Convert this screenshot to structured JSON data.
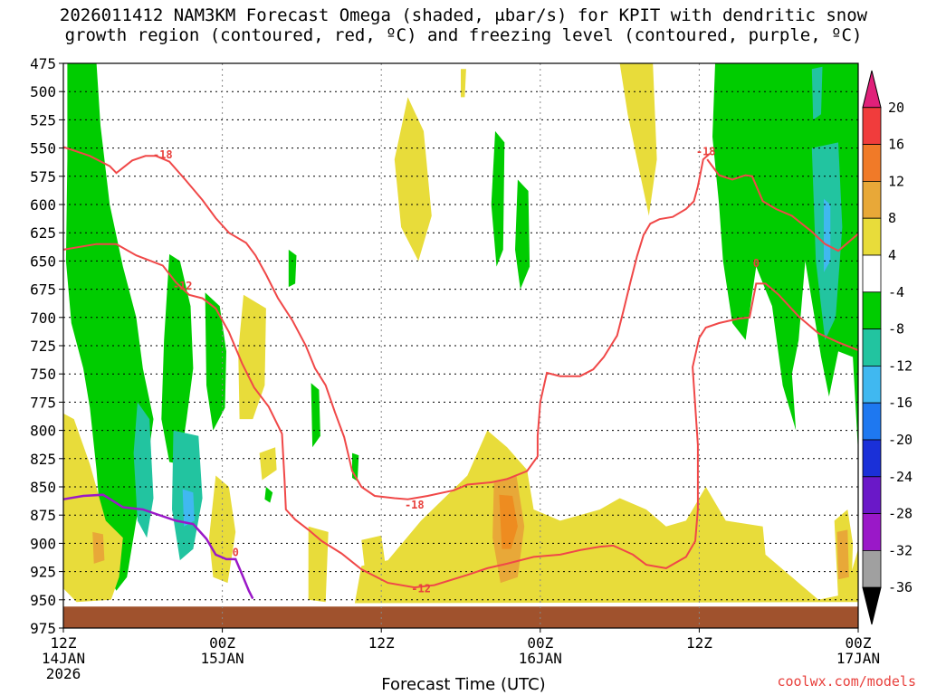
{
  "title_line1": "2026011412 NAM3KM Forecast Omega (shaded, μbar/s) for KPIT with dendritic snow",
  "title_line2": "growth region (contoured, red, ºC) and freezing level (contoured, purple, ºC)",
  "xaxis_title": "Forecast Time (UTC)",
  "credit": "coolwx.com/models",
  "colors": {
    "green": "#00cc00",
    "teal": "#22c4a0",
    "lightblue": "#40b8f0",
    "yellow": "#e8dc3a",
    "orange_light": "#e8a838",
    "orange": "#ee8c20",
    "terrain": "#a0522d",
    "contour_red": "#f04848",
    "contour_purple": "#9a18c8"
  },
  "chart_data": {
    "type": "heatmap",
    "title": "2026011412 NAM3KM Forecast Omega (shaded, μbar/s) for KPIT with dendritic snow growth region (contoured, red, ºC) and freezing level (contoured, purple, ºC)",
    "xlabel": "Forecast Time (UTC)",
    "ylabel": "",
    "y_axis": {
      "scale": "pressure",
      "range": [
        475,
        975
      ],
      "ticks": [
        475,
        500,
        525,
        550,
        575,
        600,
        625,
        650,
        675,
        700,
        725,
        750,
        775,
        800,
        825,
        850,
        875,
        900,
        925,
        950,
        975
      ]
    },
    "x_axis": {
      "range_hours": [
        0,
        60
      ],
      "ticks": [
        {
          "hour": 0,
          "label": "12Z",
          "sub": "14JAN",
          "sub2": "2026"
        },
        {
          "hour": 12,
          "label": "00Z",
          "sub": "15JAN",
          "sub2": ""
        },
        {
          "hour": 24,
          "label": "12Z",
          "sub": "",
          "sub2": ""
        },
        {
          "hour": 36,
          "label": "00Z",
          "sub": "16JAN",
          "sub2": ""
        },
        {
          "hour": 48,
          "label": "12Z",
          "sub": "",
          "sub2": ""
        },
        {
          "hour": 60,
          "label": "00Z",
          "sub": "17JAN",
          "sub2": ""
        }
      ]
    },
    "colorbar": {
      "labels": [
        20,
        16,
        12,
        8,
        4,
        -4,
        -8,
        -12,
        -16,
        -20,
        -24,
        -28,
        -32,
        -36
      ],
      "bands": [
        {
          "from": 20,
          "to": 24,
          "color": "#e0207a",
          "shape": "tri-up"
        },
        {
          "from": 16,
          "to": 20,
          "color": "#f03c3c"
        },
        {
          "from": 12,
          "to": 16,
          "color": "#f07a28"
        },
        {
          "from": 8,
          "to": 12,
          "color": "#e8a838"
        },
        {
          "from": 4,
          "to": 8,
          "color": "#e8dc3a"
        },
        {
          "from": -4,
          "to": 4,
          "color": "#ffffff"
        },
        {
          "from": -8,
          "to": -4,
          "color": "#00cc00"
        },
        {
          "from": -12,
          "to": -8,
          "color": "#22c4a0"
        },
        {
          "from": -16,
          "to": -12,
          "color": "#40b8f0"
        },
        {
          "from": -20,
          "to": -16,
          "color": "#1e78f0"
        },
        {
          "from": -24,
          "to": -20,
          "color": "#1a30d8"
        },
        {
          "from": -28,
          "to": -24,
          "color": "#6a18c8"
        },
        {
          "from": -32,
          "to": -28,
          "color": "#9a18c8"
        },
        {
          "from": -36,
          "to": -32,
          "color": "#a0a0a0"
        },
        {
          "from": -40,
          "to": -36,
          "color": "#000000",
          "shape": "tri-down"
        }
      ]
    },
    "contour_labels": [
      {
        "text": "-18",
        "hour": 7.5,
        "p": 556
      },
      {
        "text": "-12",
        "hour": 9,
        "p": 672
      },
      {
        "text": "-18",
        "hour": 26.5,
        "p": 866
      },
      {
        "text": "-12",
        "hour": 27,
        "p": 940
      },
      {
        "text": "-18",
        "hour": 48.5,
        "p": 553
      },
      {
        "text": "0",
        "hour": 52.3,
        "p": 652
      },
      {
        "text": "0",
        "hour": 13,
        "p": 908
      }
    ],
    "contour_minus18": [
      [
        0,
        549
      ],
      [
        2,
        557
      ],
      [
        3.5,
        566
      ],
      [
        4,
        572
      ],
      [
        5.2,
        561
      ],
      [
        6.2,
        557
      ],
      [
        7,
        557
      ],
      [
        8,
        562
      ],
      [
        9.2,
        578
      ],
      [
        10.5,
        596
      ],
      [
        11.5,
        612
      ],
      [
        12.5,
        625
      ],
      [
        13.8,
        634
      ],
      [
        14.5,
        645
      ],
      [
        15.3,
        662
      ],
      [
        16.2,
        683
      ],
      [
        17.3,
        703
      ],
      [
        18.3,
        725
      ],
      [
        19,
        745
      ],
      [
        19.8,
        760
      ],
      [
        20.5,
        784
      ],
      [
        21.2,
        806
      ],
      [
        21.8,
        836
      ],
      [
        22.5,
        850
      ],
      [
        23.5,
        858
      ],
      [
        25,
        860
      ],
      [
        26,
        861
      ],
      [
        27.5,
        858
      ],
      [
        29.5,
        853
      ],
      [
        30.5,
        848
      ],
      [
        32.3,
        846
      ],
      [
        33.5,
        843
      ],
      [
        35,
        836
      ],
      [
        35.8,
        823
      ],
      [
        35.8,
        805
      ],
      [
        36,
        775
      ],
      [
        36.5,
        749
      ],
      [
        37.5,
        752
      ],
      [
        39,
        752
      ],
      [
        40,
        746
      ],
      [
        40.8,
        735
      ],
      [
        41.8,
        716
      ],
      [
        42.3,
        693
      ],
      [
        42.8,
        669
      ],
      [
        43.3,
        646
      ],
      [
        43.8,
        627
      ],
      [
        44.3,
        617
      ],
      [
        45,
        613
      ],
      [
        46,
        611
      ],
      [
        47,
        604
      ],
      [
        47.6,
        597
      ],
      [
        47.9,
        584
      ],
      [
        48.3,
        560
      ],
      [
        48.8,
        555
      ]
    ],
    "contour_minus12": [
      [
        0,
        640
      ],
      [
        2.5,
        635
      ],
      [
        4,
        635
      ],
      [
        5.5,
        645
      ],
      [
        7.5,
        654
      ],
      [
        8.5,
        669
      ],
      [
        9.5,
        680
      ],
      [
        10.5,
        683
      ],
      [
        11.5,
        692
      ],
      [
        12.5,
        713
      ],
      [
        13.5,
        741
      ],
      [
        14.4,
        762
      ],
      [
        15.5,
        779
      ],
      [
        16.5,
        803
      ],
      [
        16.7,
        845
      ],
      [
        16.8,
        870
      ],
      [
        17.5,
        879
      ],
      [
        18.5,
        888
      ],
      [
        19.5,
        898
      ],
      [
        21,
        909
      ],
      [
        22.5,
        923
      ],
      [
        24.5,
        935
      ],
      [
        26.5,
        939
      ],
      [
        28,
        937
      ],
      [
        30.5,
        928
      ],
      [
        32,
        922
      ],
      [
        33.5,
        918
      ],
      [
        35.5,
        912
      ],
      [
        37.5,
        910
      ],
      [
        39,
        906
      ],
      [
        40.5,
        903
      ],
      [
        41.5,
        902
      ],
      [
        43,
        910
      ],
      [
        44,
        919
      ],
      [
        45.5,
        922
      ],
      [
        47,
        912
      ],
      [
        47.7,
        898
      ],
      [
        47.9,
        870
      ],
      [
        47.9,
        813
      ],
      [
        47.5,
        744
      ],
      [
        48,
        718
      ],
      [
        48.5,
        709
      ],
      [
        49.5,
        705
      ],
      [
        51,
        701
      ],
      [
        51.8,
        700
      ],
      [
        52,
        688
      ],
      [
        52.3,
        670
      ],
      [
        53,
        670
      ],
      [
        54,
        680
      ],
      [
        55.5,
        699
      ],
      [
        57,
        714
      ],
      [
        58.5,
        722
      ],
      [
        60,
        729
      ]
    ],
    "contour_minus12_upperright": [
      [
        48.6,
        560
      ],
      [
        49.5,
        574
      ],
      [
        50.5,
        578
      ],
      [
        51.5,
        574
      ],
      [
        52,
        575
      ],
      [
        52.8,
        597
      ],
      [
        53.8,
        604
      ],
      [
        55,
        610
      ],
      [
        56.5,
        624
      ],
      [
        57.5,
        635
      ],
      [
        58.5,
        641
      ],
      [
        59,
        636
      ],
      [
        60,
        626
      ]
    ],
    "contour_freezing": [
      [
        0,
        861
      ],
      [
        1.5,
        858
      ],
      [
        3,
        857
      ],
      [
        4.5,
        868
      ],
      [
        6,
        870
      ],
      [
        7,
        874
      ],
      [
        8.5,
        880
      ],
      [
        9.8,
        883
      ],
      [
        10.8,
        896
      ],
      [
        11.5,
        910
      ],
      [
        12.3,
        914
      ],
      [
        13,
        914
      ],
      [
        13.5,
        928
      ],
      [
        14,
        942
      ],
      [
        14.3,
        949
      ]
    ]
  }
}
